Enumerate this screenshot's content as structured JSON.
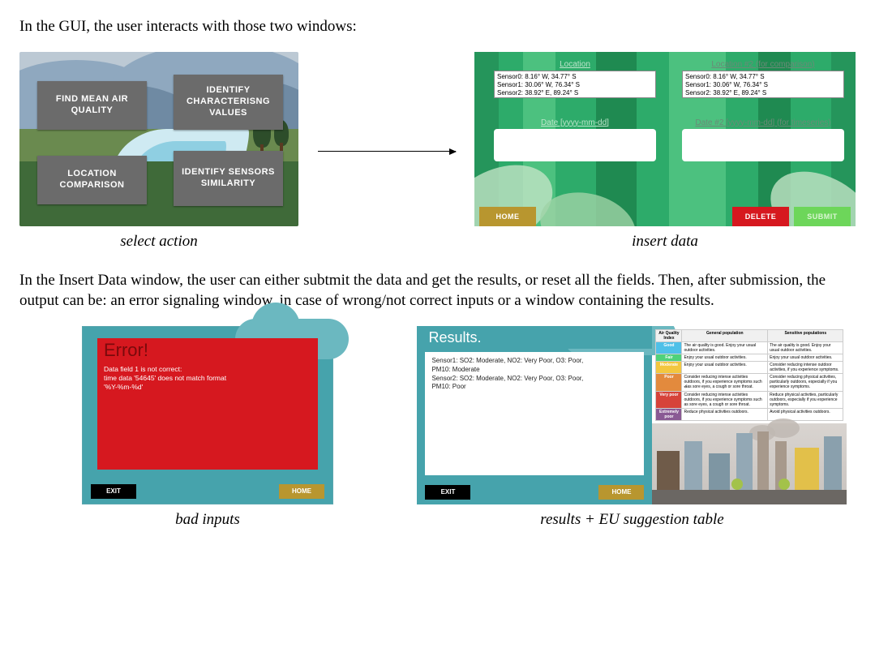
{
  "intro": "In the GUI, the user interacts with those two windows:",
  "mid_text": "In the Insert Data window, the user can either subtmit the data and get the results, or reset all the fields. Then, after submission, the output can be:  an error signaling window, in case of wrong/not correct inputs or a window containing the results.",
  "captions": {
    "select_action": "select action",
    "insert_data": "insert data",
    "bad_inputs": "bad inputs",
    "results": "results + EU suggestion table"
  },
  "select_panel": {
    "bg_colors": {
      "sky": "#bcc9d4",
      "mtn_back": "#8fa8bf",
      "mtn_mid": "#6f8aa3",
      "grass_far": "#6a8a4f",
      "grass_near": "#3f6a39",
      "river": "#cfeaf2",
      "river_inner": "#8fcfe2",
      "tree": "#2d4d2a"
    },
    "button_style": {
      "bg": "#6b6b6b",
      "text": "#ffffff",
      "font_size": 11,
      "font_weight": 700
    },
    "buttons": {
      "find_mean": "FIND MEAN AIR QUALITY",
      "identify_char": "IDENTIFY CHARACTERISNG VALUES",
      "location_cmp": "LOCATION COMPARISON",
      "identify_sim": "IDENTIFY SENSORS SIMILARITY"
    }
  },
  "insert_panel": {
    "bg_colors": {
      "base": "#2dab6a",
      "stripe_dark": "#1f8a51",
      "stripe_light": "#4cc17f",
      "leaf": "#c2e3c6",
      "leaf2": "#9fd3a6"
    },
    "labels": {
      "location": "Location",
      "location2": "Location #2 (for comparison)",
      "date": "Date [yyyy-mm-dd]",
      "date2": "Date #2 [yyyy-mm-dd] (for timeseries)"
    },
    "sensor_lines": [
      "Sensor0: 8.16° W, 34.77° S",
      "Sensor1: 30.06° W, 76.34° S",
      "Sensor2: 38.92° E, 89.24° S"
    ],
    "buttons": {
      "home": "HOME",
      "delete": "DELETE",
      "submit": "SUBMIT"
    },
    "button_colors": {
      "home": "#b8962f",
      "delete": "#d6181f",
      "submit": "#6dd65a"
    }
  },
  "error_panel": {
    "title": "Error!",
    "colors": {
      "sky": "#46a3ac",
      "cloud": "#6bb8c0",
      "box": "#d6181f",
      "title": "#7a0a0c",
      "msg": "#ffffff",
      "exit_bg": "#000000",
      "home_bg": "#b8962f"
    },
    "message": "Data field 1 is not correct:\ntime data '54645' does not match format\n'%Y-%m-%d'",
    "buttons": {
      "exit": "EXIT",
      "home": "HOME"
    }
  },
  "results_panel": {
    "title": "Results.",
    "text": "Sensor1: SO2: Moderate, NO2: Very Poor, O3: Poor,\nPM10: Moderate\nSensor2: SO2: Moderate, NO2: Very Poor, O3: Poor,\nPM10: Poor",
    "colors": {
      "header": "#46a3ac",
      "cloud": "#6bb8c0",
      "exit_bg": "#000000",
      "home_bg": "#b8962f"
    },
    "buttons": {
      "exit": "EXIT",
      "home": "HOME"
    },
    "aq_table": {
      "columns": [
        "Air Quality Index",
        "General population",
        "Sensitive populations"
      ],
      "rows": [
        {
          "idx": "Good",
          "color": "#4fc0e8",
          "gen": "The air quality is good. Enjoy your usual outdoor activities.",
          "sens": "The air quality is good. Enjoy your usual outdoor activities."
        },
        {
          "idx": "Fair",
          "color": "#4fd27a",
          "gen": "Enjoy your usual outdoor activities.",
          "sens": "Enjoy your usual outdoor activities."
        },
        {
          "idx": "Moderate",
          "color": "#f3c73f",
          "gen": "Enjoy your usual outdoor activities.",
          "sens": "Consider reducing intense outdoor activities, if you experience symptoms."
        },
        {
          "idx": "Poor",
          "color": "#e38a3d",
          "gen": "Consider reducing intense activities outdoors, if you experience symptoms such తas sore eyes, a cough or sore throat.",
          "sens": "Consider reducing physical activities, particularly outdoors, especially if you experience symptoms."
        },
        {
          "idx": "Very poor",
          "color": "#d6433a",
          "gen": "Consider reducing intense activities outdoors, if you experience symptoms such as sore eyes, a cough or sore throat.",
          "sens": "Reduce physical activities, particularly outdoors, especially if you experience symptoms."
        },
        {
          "idx": "Extremely poor",
          "color": "#8a5a94",
          "gen": "Reduce physical activities outdoors.",
          "sens": "Avoid physical activities outdoors."
        }
      ]
    }
  }
}
